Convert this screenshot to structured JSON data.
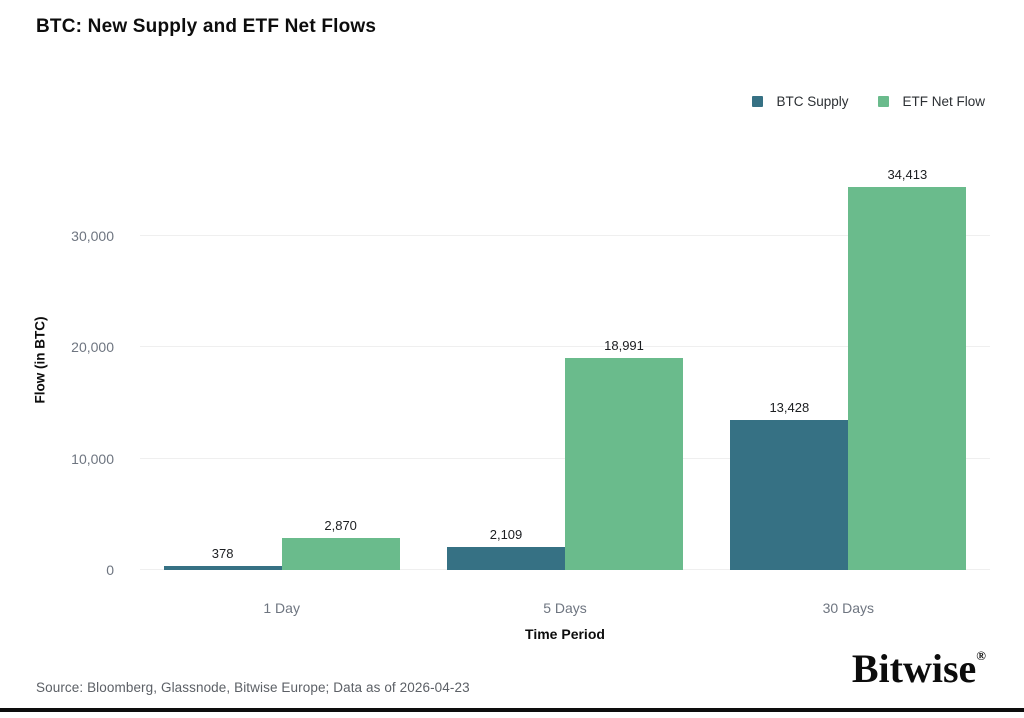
{
  "title": "BTC: New Supply and ETF Net Flows",
  "legend": [
    {
      "label": "BTC Supply",
      "color": "#367184"
    },
    {
      "label": "ETF Net Flow",
      "color": "#6ABB8C"
    }
  ],
  "chart_data": {
    "type": "bar",
    "categories": [
      "1 Day",
      "5 Days",
      "30 Days"
    ],
    "series": [
      {
        "name": "BTC Supply",
        "color": "#367184",
        "values": [
          378,
          2109,
          13428
        ]
      },
      {
        "name": "ETF Net Flow",
        "color": "#6ABB8C",
        "values": [
          2870,
          18991,
          34413
        ]
      }
    ],
    "title": "BTC: New Supply and ETF Net Flows",
    "xlabel": "Time Period",
    "ylabel": "Flow (in BTC)",
    "ylim": [
      0,
      37700
    ],
    "yticks": [
      0,
      10000,
      20000,
      30000
    ],
    "grid": true,
    "legend_position": "top-right",
    "value_labels_shown": true
  },
  "footer": {
    "source": "Source: Bloomberg, Glassnode, Bitwise Europe; Data as of 2026-04-23",
    "logo_text": "Bitwise",
    "logo_mark": "®"
  }
}
